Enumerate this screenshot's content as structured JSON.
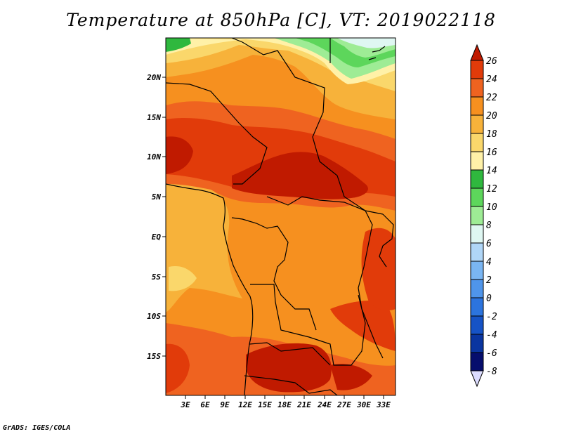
{
  "title": "Temperature at 850hPa [C], VT: 2019022118",
  "credit": "GrADS: IGES/COLA",
  "map": {
    "lat_labels": [
      "20N",
      "15N",
      "10N",
      "5N",
      "EQ",
      "5S",
      "10S",
      "15S"
    ],
    "lon_labels": [
      "3E",
      "6E",
      "9E",
      "12E",
      "15E",
      "18E",
      "21E",
      "24E",
      "27E",
      "30E",
      "33E"
    ]
  },
  "colorbar": {
    "labels": [
      "26",
      "24",
      "22",
      "20",
      "18",
      "16",
      "14",
      "12",
      "10",
      "8",
      "6",
      "4",
      "2",
      "0",
      "-2",
      "-4",
      "-6",
      "-8"
    ],
    "colors": [
      "#c01a00",
      "#e13b0a",
      "#ef6320",
      "#f6901f",
      "#f7b23a",
      "#fad76b",
      "#fff1a8",
      "#2fb83e",
      "#5dd65b",
      "#9eec95",
      "#dff7f2",
      "#b0d6f7",
      "#7ab6f3",
      "#4f95ea",
      "#2c74de",
      "#1653c6",
      "#0a35a0",
      "#060e6d",
      "#dcdcff"
    ]
  }
}
